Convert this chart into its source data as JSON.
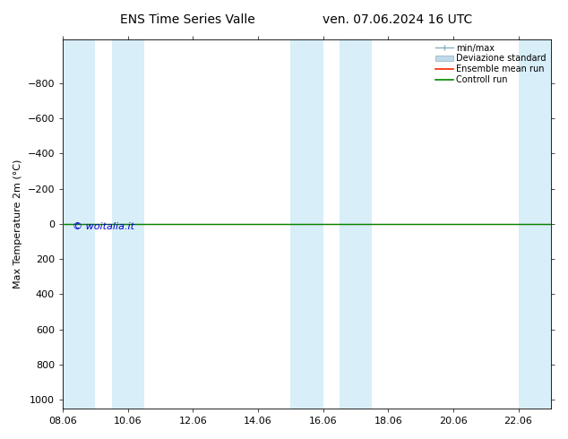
{
  "title": "ENS Time Series Valle",
  "title2": "ven. 07.06.2024 16 UTC",
  "ylabel": "Max Temperature 2m (°C)",
  "ylim_bottom": -1050,
  "ylim_top": 1050,
  "yticks": [
    -800,
    -600,
    -400,
    -200,
    0,
    200,
    400,
    600,
    800,
    1000
  ],
  "xtick_labels": [
    "08.06",
    "10.06",
    "12.06",
    "14.06",
    "16.06",
    "18.06",
    "20.06",
    "22.06"
  ],
  "xtick_positions": [
    0,
    2,
    4,
    6,
    8,
    10,
    12,
    14
  ],
  "xlim": [
    0,
    15
  ],
  "shaded_bands": [
    {
      "x_start": 0.0,
      "x_end": 1.0
    },
    {
      "x_start": 1.5,
      "x_end": 2.5
    },
    {
      "x_start": 7.0,
      "x_end": 8.0
    },
    {
      "x_start": 8.5,
      "x_end": 9.5
    },
    {
      "x_start": 14.0,
      "x_end": 15.0
    }
  ],
  "line_y": 0,
  "ensemble_color": "#ff2200",
  "control_color": "#008800",
  "band_color": "#d8eef8",
  "watermark": "© woitalia.it",
  "watermark_color": "#0000cc",
  "legend_items": [
    "min/max",
    "Deviazione standard",
    "Ensemble mean run",
    "Controll run"
  ],
  "minmax_color": "#8ab0c0",
  "devstd_color": "#c0d8e8",
  "background_color": "#ffffff",
  "font_size": 8,
  "title_font_size": 10
}
